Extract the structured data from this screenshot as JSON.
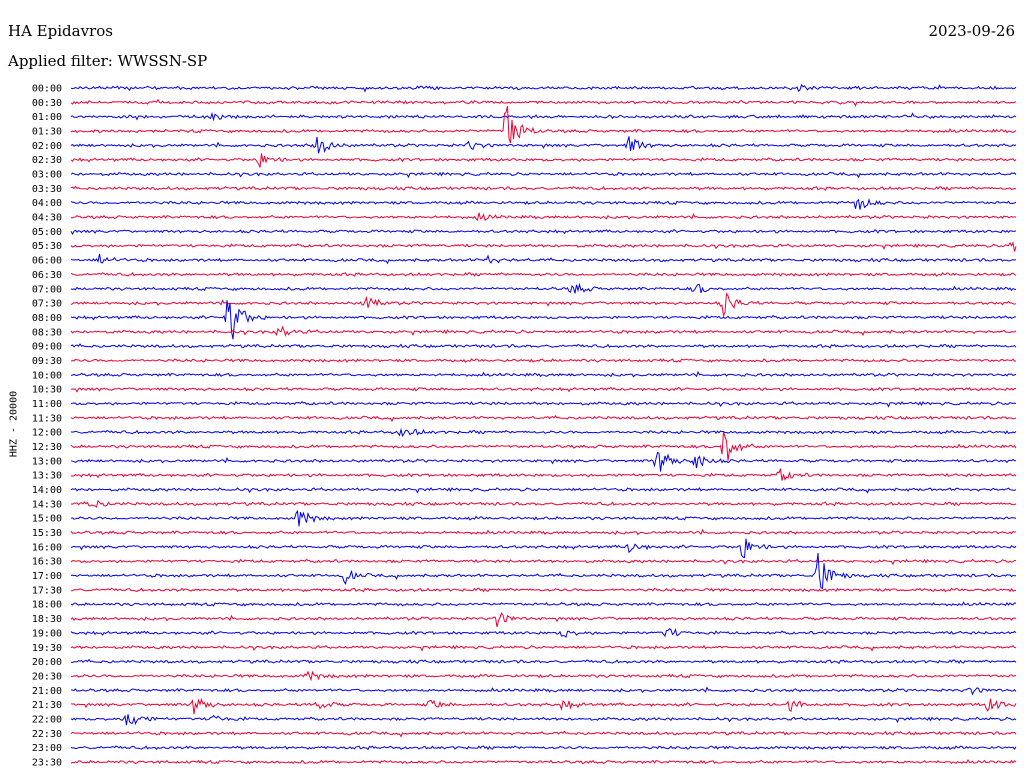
{
  "header": {
    "station": "HA Epidavros",
    "date": "2023-09-26",
    "filter_label": "Applied filter: WWSSN-SP"
  },
  "chart_data": {
    "type": "line",
    "title": "HA Epidavros",
    "ylabel": "HHZ - 20000",
    "colors": [
      "#0000ee",
      "#ee0033"
    ],
    "rows": [
      "00:00",
      "00:30",
      "01:00",
      "01:30",
      "02:00",
      "02:30",
      "03:00",
      "03:30",
      "04:00",
      "04:30",
      "05:00",
      "05:30",
      "06:00",
      "06:30",
      "07:00",
      "07:30",
      "08:00",
      "08:30",
      "09:00",
      "09:30",
      "10:00",
      "10:30",
      "11:00",
      "11:30",
      "12:00",
      "12:30",
      "13:00",
      "13:30",
      "14:00",
      "14:30",
      "15:00",
      "15:30",
      "16:00",
      "16:30",
      "17:00",
      "17:30",
      "18:00",
      "18:30",
      "19:00",
      "19:30",
      "20:00",
      "20:30",
      "21:00",
      "21:30",
      "22:00",
      "22:30",
      "23:00",
      "23:30"
    ],
    "events": [
      {
        "row": 0,
        "t": 0.37,
        "amp": 3
      },
      {
        "row": 0,
        "t": 0.77,
        "amp": 3
      },
      {
        "row": 2,
        "t": 0.15,
        "amp": 3
      },
      {
        "row": 3,
        "t": 0.46,
        "amp": 36
      },
      {
        "row": 4,
        "t": 0.26,
        "amp": 12
      },
      {
        "row": 4,
        "t": 0.42,
        "amp": 5
      },
      {
        "row": 4,
        "t": 0.59,
        "amp": 9
      },
      {
        "row": 5,
        "t": 0.2,
        "amp": 7
      },
      {
        "row": 8,
        "t": 0.83,
        "amp": 10
      },
      {
        "row": 9,
        "t": 0.43,
        "amp": 4
      },
      {
        "row": 11,
        "t": 0.995,
        "amp": 12
      },
      {
        "row": 12,
        "t": 0.03,
        "amp": 6
      },
      {
        "row": 12,
        "t": 0.44,
        "amp": 4
      },
      {
        "row": 14,
        "t": 0.53,
        "amp": 7
      },
      {
        "row": 14,
        "t": 0.66,
        "amp": 6
      },
      {
        "row": 15,
        "t": 0.31,
        "amp": 8
      },
      {
        "row": 15,
        "t": 0.69,
        "amp": 12
      },
      {
        "row": 16,
        "t": 0.165,
        "amp": 40
      },
      {
        "row": 17,
        "t": 0.22,
        "amp": 7
      },
      {
        "row": 24,
        "t": 0.35,
        "amp": 9
      },
      {
        "row": 25,
        "t": 0.69,
        "amp": 22
      },
      {
        "row": 26,
        "t": 0.62,
        "amp": 16
      },
      {
        "row": 26,
        "t": 0.66,
        "amp": 9
      },
      {
        "row": 27,
        "t": 0.75,
        "amp": 7
      },
      {
        "row": 29,
        "t": 0.02,
        "amp": 6
      },
      {
        "row": 30,
        "t": 0.24,
        "amp": 11
      },
      {
        "row": 32,
        "t": 0.59,
        "amp": 6
      },
      {
        "row": 32,
        "t": 0.71,
        "amp": 12
      },
      {
        "row": 34,
        "t": 0.79,
        "amp": 26
      },
      {
        "row": 34,
        "t": 0.29,
        "amp": 7
      },
      {
        "row": 37,
        "t": 0.45,
        "amp": 8
      },
      {
        "row": 38,
        "t": 0.52,
        "amp": 5
      },
      {
        "row": 38,
        "t": 0.63,
        "amp": 6
      },
      {
        "row": 41,
        "t": 0.25,
        "amp": 5
      },
      {
        "row": 42,
        "t": 0.95,
        "amp": 4
      },
      {
        "row": 43,
        "t": 0.13,
        "amp": 10
      },
      {
        "row": 43,
        "t": 0.26,
        "amp": 5
      },
      {
        "row": 43,
        "t": 0.38,
        "amp": 5
      },
      {
        "row": 43,
        "t": 0.52,
        "amp": 5
      },
      {
        "row": 43,
        "t": 0.76,
        "amp": 6
      },
      {
        "row": 43,
        "t": 0.97,
        "amp": 8
      },
      {
        "row": 44,
        "t": 0.06,
        "amp": 12
      },
      {
        "row": 44,
        "t": 0.15,
        "amp": 5
      }
    ]
  }
}
